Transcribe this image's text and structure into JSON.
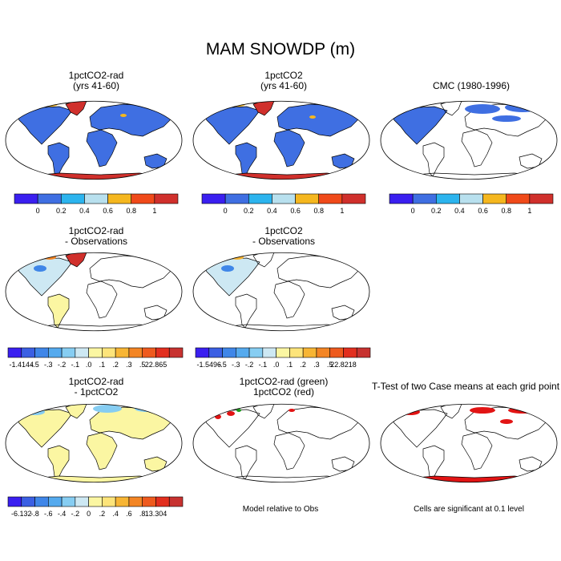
{
  "title": "MAM SNOWDP (m)",
  "panels": {
    "p1": {
      "title": "1pctCO2-rad\n(yrs 41-60)"
    },
    "p2": {
      "title": "1pctCO2\n(yrs 41-60)"
    },
    "p3": {
      "title": "CMC (1980-1996)"
    },
    "p4": {
      "title": "1pctCO2-rad\n- Observations"
    },
    "p5": {
      "title": "1pctCO2\n- Observations"
    },
    "p7": {
      "title": "1pctCO2-rad\n- 1pctCO2"
    },
    "p8": {
      "title": "1pctCO2-rad (green)\n1pctCO2 (red)"
    },
    "p9": {
      "title": "T-Test of two Case means at each grid point"
    }
  },
  "captions": {
    "p8": "Model relative to Obs",
    "p9": "Cells are significant at 0.1 level"
  },
  "colorbars": {
    "abs": {
      "colors": [
        "#3a1ff0",
        "#3f6fe2",
        "#2cb4ee",
        "#b8e0ee",
        "#f5b71f",
        "#f04a1a",
        "#d0302c"
      ],
      "labels": [
        "0",
        "0.2",
        "0.4",
        "0.6",
        "0.8",
        "1"
      ]
    },
    "diff_rad": {
      "colors": [
        "#3a1ff0",
        "#3b5fe3",
        "#3f86e8",
        "#55aaee",
        "#86cdf2",
        "#cde8f3",
        "#fbf6a2",
        "#fde47a",
        "#f7b534",
        "#f38524",
        "#ee5a1e",
        "#e22f1f",
        "#c73230"
      ],
      "labels": [
        "-1.4144",
        "-.5",
        "-.3",
        "-.2",
        "-.1",
        ".0",
        ".1",
        ".2",
        ".3",
        ".5",
        "22.865"
      ]
    },
    "diff_co2": {
      "colors": [
        "#3a1ff0",
        "#3b5fe3",
        "#3f86e8",
        "#55aaee",
        "#86cdf2",
        "#cde8f3",
        "#fbf6a2",
        "#fde47a",
        "#f7b534",
        "#f38524",
        "#ee5a1e",
        "#e22f1f",
        "#c73230"
      ],
      "labels": [
        "-1.5496",
        "-.5",
        "-.3",
        "-.2",
        "-.1",
        ".0",
        ".1",
        ".2",
        ".3",
        ".5",
        "22.8218"
      ]
    },
    "diff_model": {
      "colors": [
        "#3a1ff0",
        "#3b5fe3",
        "#3f86e8",
        "#55aaee",
        "#86cdf2",
        "#cde8f3",
        "#fbf6a2",
        "#fde47a",
        "#f7b534",
        "#f38524",
        "#ee5a1e",
        "#e22f1f",
        "#c73230"
      ],
      "labels": [
        "-6.132",
        "-.8",
        "-.6",
        "-.4",
        "-.2",
        "0",
        ".2",
        ".4",
        ".6",
        ".8",
        "13.304"
      ]
    }
  },
  "fill_colors": {
    "model_snow": "#3f6fe2",
    "model_deep": "#d0302c",
    "obs_snow": "#3f6fe2",
    "diff_light": "#cde8f3",
    "diff_yellow": "#fbf6a2",
    "diff_red": "#d0302c",
    "ttest_red": "#e21414",
    "green": "#1c9e1c"
  }
}
